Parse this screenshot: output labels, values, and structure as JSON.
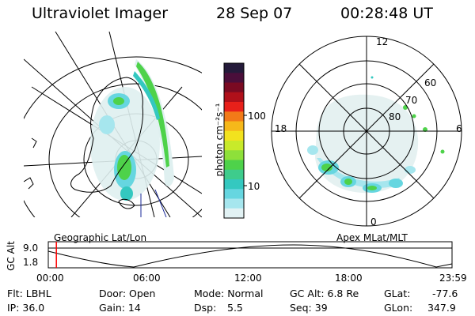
{
  "header": {
    "title": "Ultraviolet Imager",
    "date": "28 Sep 07",
    "time": "00:28:48 UT"
  },
  "colorbar": {
    "unit_label": "photon cm⁻²s⁻¹",
    "ticks": [
      "100",
      "10"
    ],
    "colors": [
      "#241a3a",
      "#4a0e3a",
      "#7a0a22",
      "#b0101a",
      "#e8201a",
      "#f27a18",
      "#f6b81a",
      "#f2e21e",
      "#c8ea2a",
      "#8ee03a",
      "#4ed24a",
      "#3ecc8c",
      "#34c8c0",
      "#66d6e0",
      "#a6e6ee",
      "#e2f2f4"
    ]
  },
  "left_map": {
    "caption": "Geographic Lat/Lon"
  },
  "right_map": {
    "caption": "Apex  MLat/MLT",
    "mlt_labels": {
      "top": "12",
      "bottom": "0",
      "left": "18",
      "right": "6"
    },
    "lat_labels": [
      "60",
      "70",
      "80"
    ]
  },
  "timeline": {
    "ylabel": "GC Alt",
    "yticks": [
      "9.0",
      "1.8"
    ],
    "xticks": [
      "00:00",
      "06:00",
      "12:00",
      "18:00",
      "23:59"
    ],
    "marker_time_fraction": 0.02
  },
  "status": {
    "filter": "Flt: LBHL",
    "ip": "IP: 36.0",
    "door": "Door: Open",
    "gain": "Gain: 14",
    "mode": "Mode: Normal",
    "dsp_label": "Dsp:",
    "dsp_value": "5.5",
    "gc_alt": "GC Alt: 6.8 Re",
    "seq": "Seq: 39",
    "glat_label": "GLat:",
    "glat_value": "-77.6",
    "glon_label": "GLon:",
    "glon_value": "347.9"
  }
}
